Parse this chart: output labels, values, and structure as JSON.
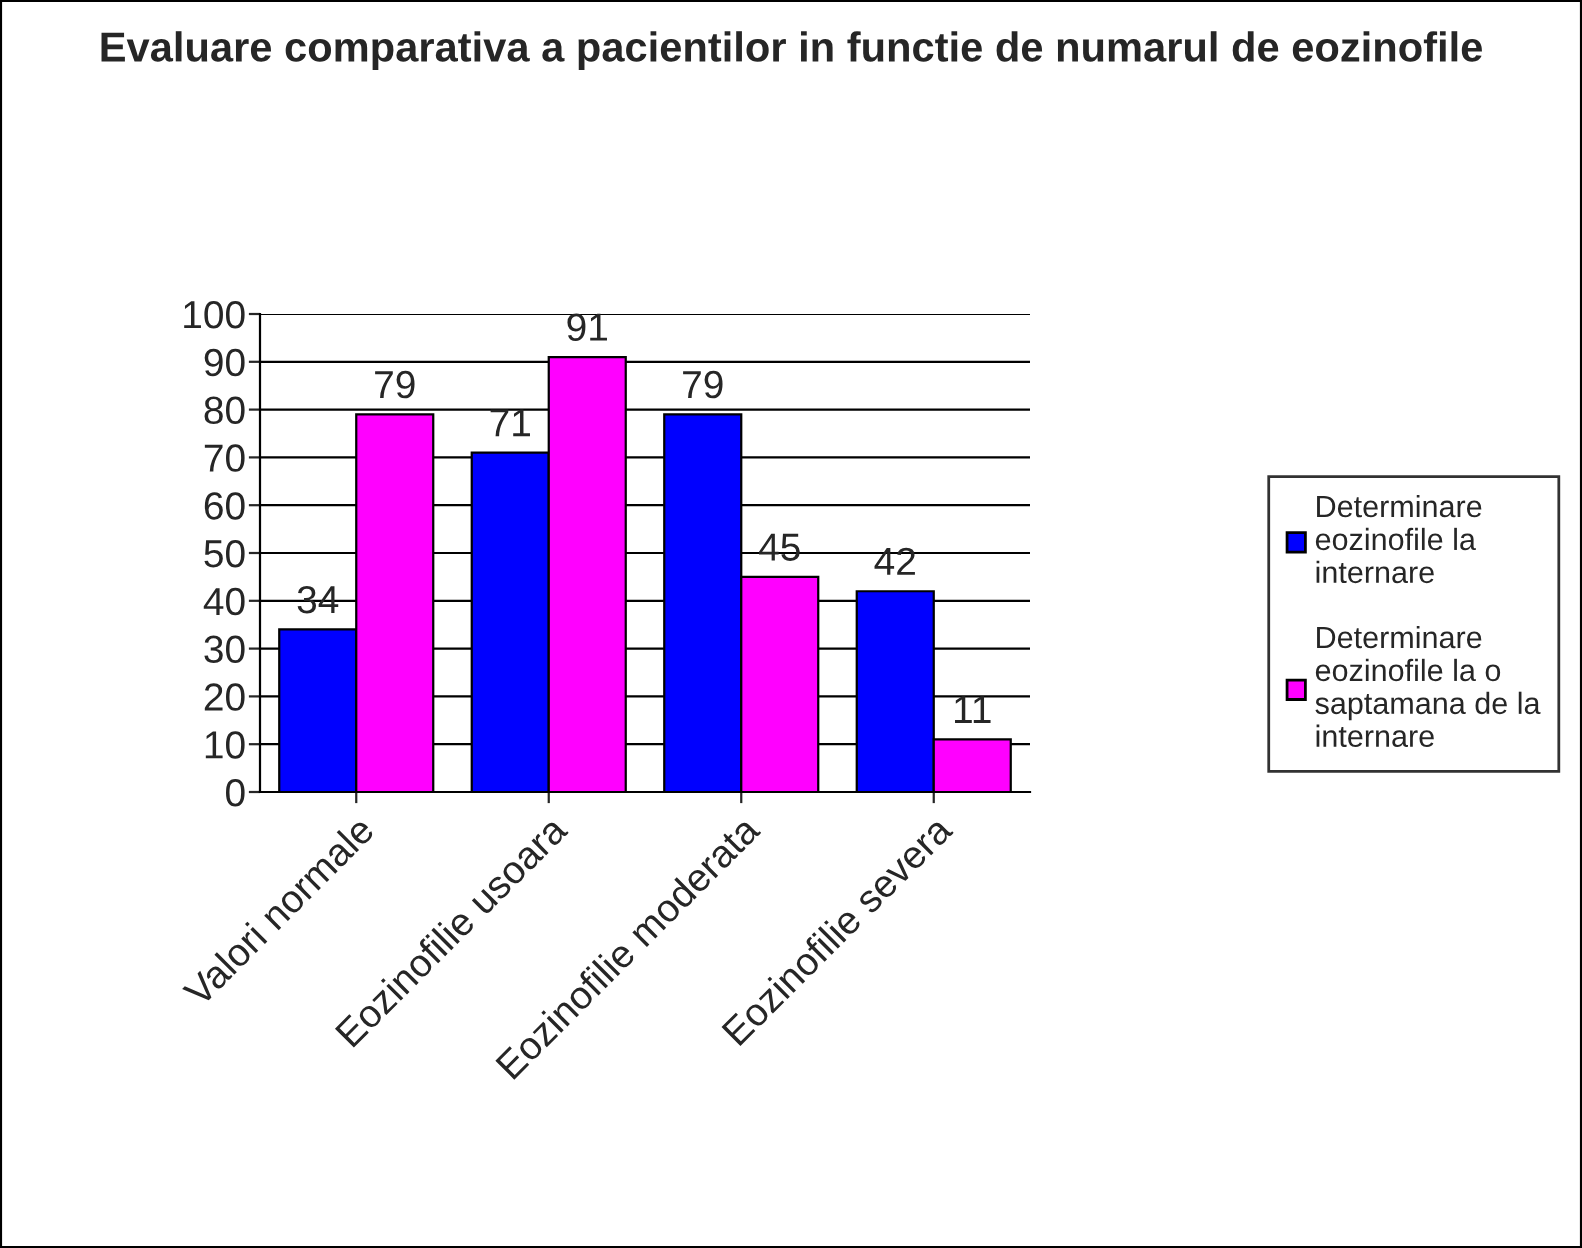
{
  "chart_data": {
    "type": "bar",
    "title": "Evaluare comparativa a pacientilor in functie de numarul de eozinofile",
    "categories": [
      "Valori normale",
      "Eozinofilie usoara",
      "Eozinofilie moderata",
      "Eozinofilie severa"
    ],
    "series": [
      {
        "name": "Determinare eozinofile la internare",
        "color": "#0000ff",
        "values": [
          34,
          71,
          79,
          42
        ]
      },
      {
        "name": "Determinare eozinofile la o saptamana de la internare",
        "color": "#ff00ff",
        "values": [
          79,
          91,
          45,
          11
        ]
      }
    ],
    "ylim": [
      0,
      100
    ],
    "yticks": [
      0,
      10,
      20,
      30,
      40,
      50,
      60,
      70,
      80,
      90,
      100
    ],
    "grid": "y",
    "legend": "right",
    "data_labels": true
  }
}
